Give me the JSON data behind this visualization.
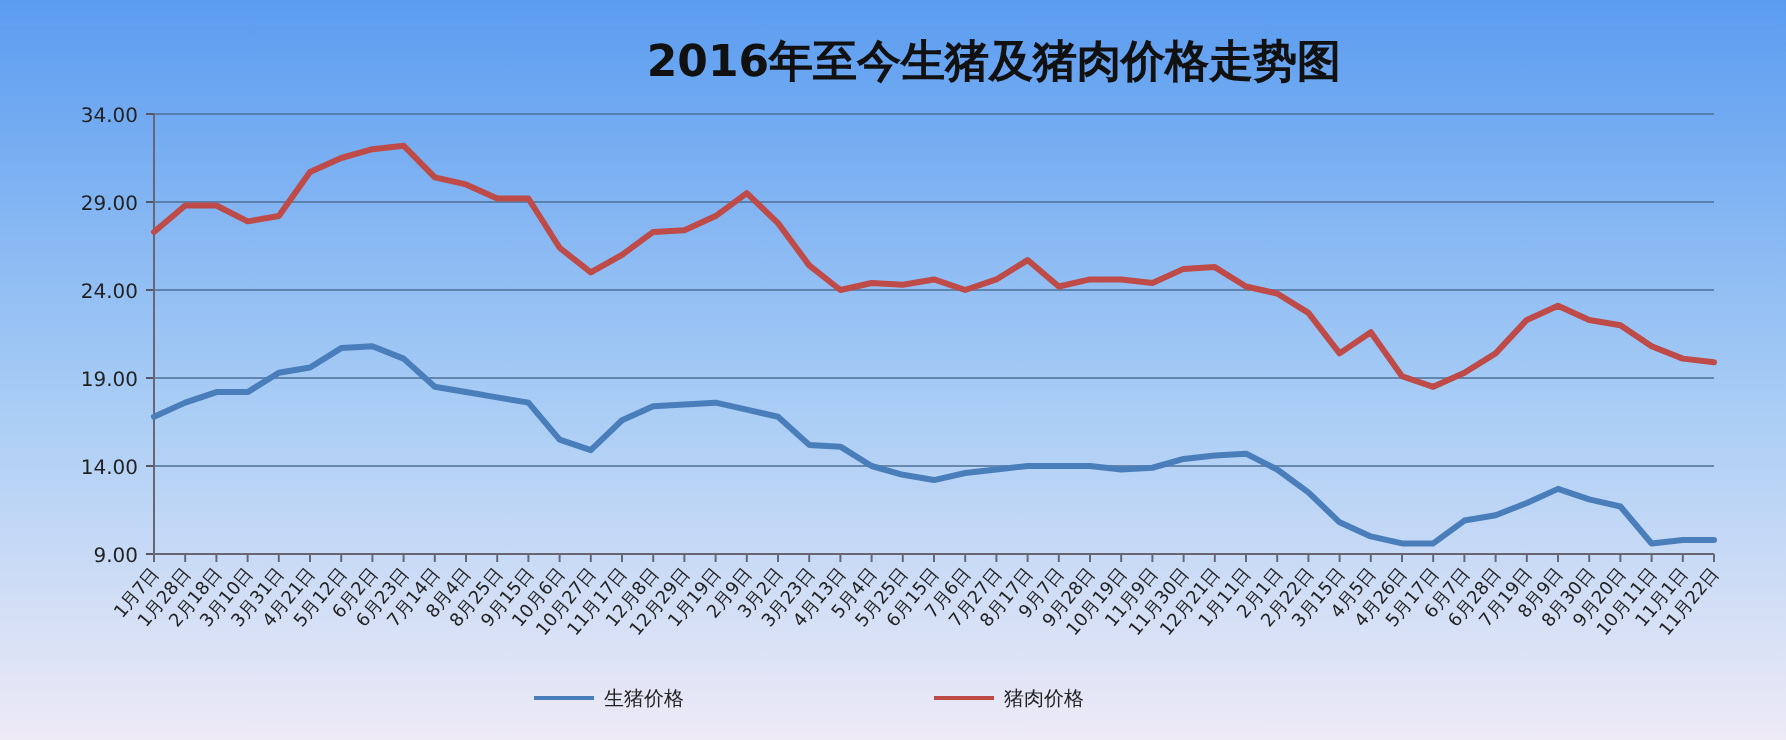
{
  "chart_data": {
    "type": "line",
    "title": "2016年至今生猪及猪肉价格走势图",
    "categories": [
      "1月7日",
      "1月28日",
      "2月18日",
      "3月10日",
      "3月31日",
      "4月21日",
      "5月12日",
      "6月2日",
      "6月23日",
      "7月14日",
      "8月4日",
      "8月25日",
      "9月15日",
      "10月6日",
      "10月27日",
      "11月17日",
      "12月8日",
      "12月29日",
      "1月19日",
      "2月9日",
      "3月2日",
      "3月23日",
      "4月13日",
      "5月4日",
      "5月25日",
      "6月15日",
      "7月6日",
      "7月27日",
      "8月17日",
      "9月7日",
      "9月28日",
      "10月19日",
      "11月9日",
      "11月30日",
      "12月21日",
      "1月11日",
      "2月1日",
      "2月22日",
      "3月15日",
      "4月5日",
      "4月26日",
      "5月17日",
      "6月7日",
      "6月28日",
      "7月19日",
      "8月9日",
      "8月30日",
      "9月20日",
      "10月11日",
      "11月1日",
      "11月22日"
    ],
    "series": [
      {
        "name": "生猪价格",
        "color": "#4a7ebb",
        "values": [
          16.8,
          17.6,
          18.2,
          18.2,
          19.3,
          19.6,
          20.7,
          20.8,
          20.1,
          18.5,
          18.2,
          17.9,
          17.6,
          15.5,
          14.9,
          16.6,
          17.4,
          17.5,
          17.6,
          17.2,
          16.8,
          15.2,
          15.1,
          14.0,
          13.5,
          13.2,
          13.6,
          13.8,
          14.0,
          14.0,
          14.0,
          13.8,
          13.9,
          14.4,
          14.6,
          14.7,
          13.8,
          12.5,
          10.8,
          10.0,
          9.6,
          9.6,
          10.9,
          11.2,
          11.9,
          12.7,
          12.1,
          11.7,
          9.6,
          9.8,
          9.8
        ]
      },
      {
        "name": "猪肉价格",
        "color": "#be4b48",
        "values": [
          27.3,
          28.8,
          28.8,
          27.9,
          28.2,
          30.7,
          31.5,
          32.0,
          32.2,
          30.4,
          30.0,
          29.2,
          29.2,
          26.4,
          25.0,
          26.0,
          27.3,
          27.4,
          28.2,
          29.5,
          27.8,
          25.4,
          24.0,
          24.4,
          24.3,
          24.6,
          24.0,
          24.6,
          25.7,
          24.2,
          24.6,
          24.6,
          24.4,
          25.2,
          25.3,
          24.2,
          23.8,
          22.7,
          20.4,
          21.6,
          19.1,
          18.5,
          19.3,
          20.4,
          22.3,
          23.1,
          22.3,
          22.0,
          20.8,
          20.1,
          19.9
        ]
      }
    ],
    "ylim": [
      9,
      34
    ],
    "yticks": [
      {
        "value": 9,
        "label": "9.00"
      },
      {
        "value": 14,
        "label": "14.00"
      },
      {
        "value": 19,
        "label": "19.00"
      },
      {
        "value": 24,
        "label": "24.00"
      },
      {
        "value": 29,
        "label": "29.00"
      },
      {
        "value": 34,
        "label": "34.00"
      }
    ],
    "grid": "y",
    "legend": "bottom"
  }
}
